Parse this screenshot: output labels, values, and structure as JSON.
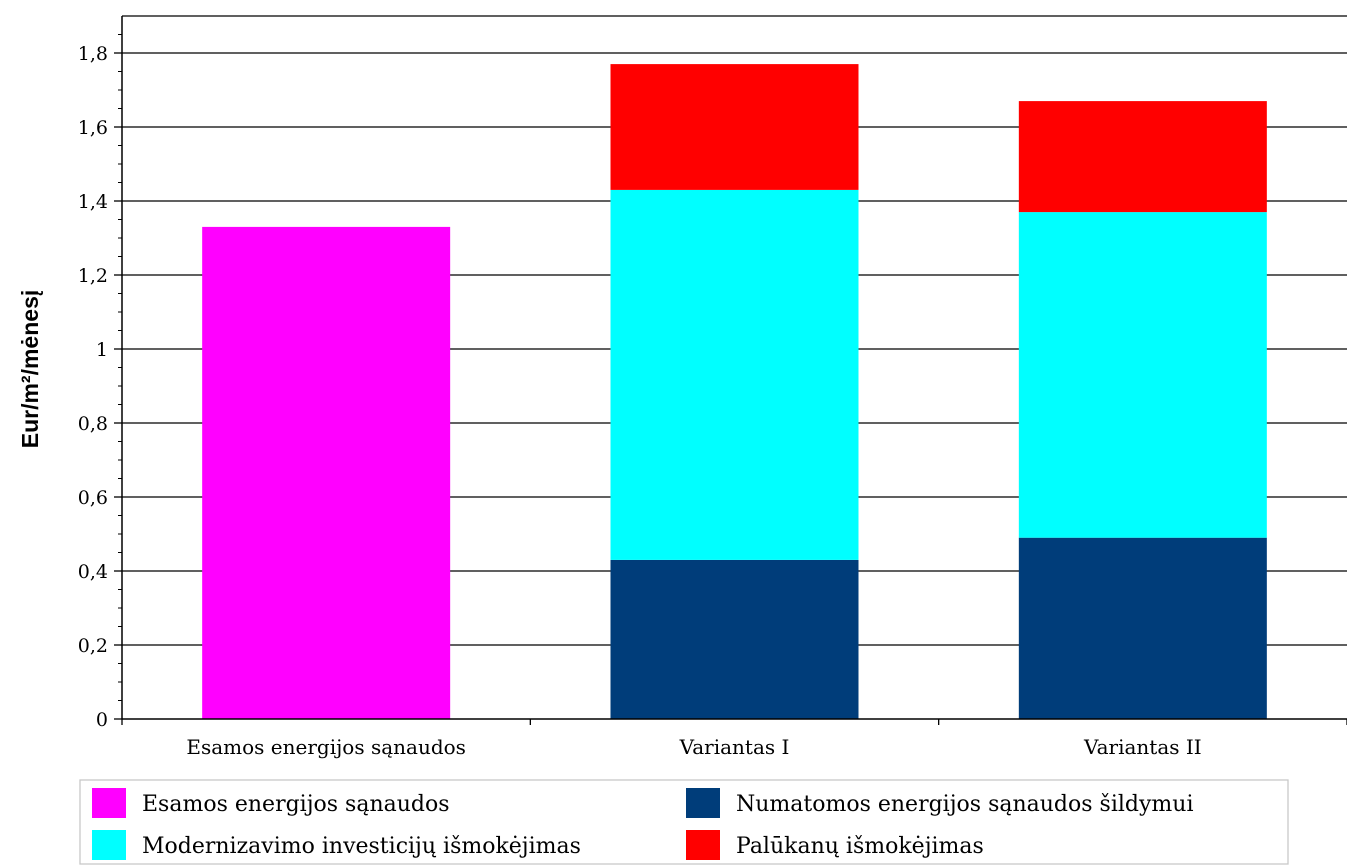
{
  "chart_data": {
    "type": "bar",
    "stacked": true,
    "title": "",
    "xlabel": "",
    "ylabel": "Eur/m²/mėnesį",
    "ylim": [
      0,
      1.9
    ],
    "yticks": [
      0,
      0.2,
      0.4,
      0.6,
      0.8,
      1,
      1.2,
      1.4,
      1.6,
      1.8
    ],
    "ytick_labels": [
      "0",
      "0,2",
      "0,4",
      "0,6",
      "0,8",
      "1",
      "1,2",
      "1,4",
      "1,6",
      "1,8"
    ],
    "grid": "horizontal major gridlines",
    "legend_position": "bottom",
    "categories": [
      "Esamos energijos sąnaudos",
      "Variantas I",
      "Variantas II"
    ],
    "series": [
      {
        "name": "Esamos energijos sąnaudos",
        "color": "#ff00ff",
        "values": [
          1.33,
          0,
          0
        ]
      },
      {
        "name": "Numatomos energijos sąnaudos šildymui",
        "color": "#003d7a",
        "values": [
          0,
          0.43,
          0.49
        ]
      },
      {
        "name": "Modernizavimo investicijų išmokėjimas",
        "color": "#00ffff",
        "values": [
          0,
          1.0,
          0.88
        ]
      },
      {
        "name": "Palūkanų išmokėjimas",
        "color": "#ff0000",
        "values": [
          0,
          0.34,
          0.3
        ]
      }
    ]
  }
}
